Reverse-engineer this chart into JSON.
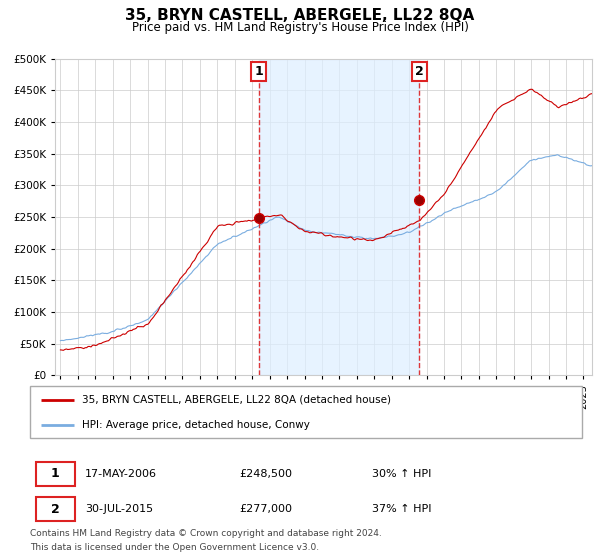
{
  "title": "35, BRYN CASTELL, ABERGELE, LL22 8QA",
  "subtitle": "Price paid vs. HM Land Registry's House Price Index (HPI)",
  "legend_line1": "35, BRYN CASTELL, ABERGELE, LL22 8QA (detached house)",
  "legend_line2": "HPI: Average price, detached house, Conwy",
  "transaction1_date": "17-MAY-2006",
  "transaction1_price": "£248,500",
  "transaction1_hpi": "30% ↑ HPI",
  "transaction2_date": "30-JUL-2015",
  "transaction2_price": "£277,000",
  "transaction2_hpi": "37% ↑ HPI",
  "footer1": "Contains HM Land Registry data © Crown copyright and database right 2024.",
  "footer2": "This data is licensed under the Open Government Licence v3.0.",
  "vline1_x": 2006.38,
  "vline2_x": 2015.58,
  "marker1_y": 248500,
  "marker2_y": 277000,
  "ylim": [
    0,
    500000
  ],
  "xlim_start": 1994.7,
  "xlim_end": 2025.5,
  "red_color": "#cc0000",
  "blue_color": "#7aade0",
  "shade_color": "#ddeeff",
  "vline_color": "#dd2222",
  "grid_color": "#cccccc",
  "title_fontsize": 11,
  "subtitle_fontsize": 8.5
}
